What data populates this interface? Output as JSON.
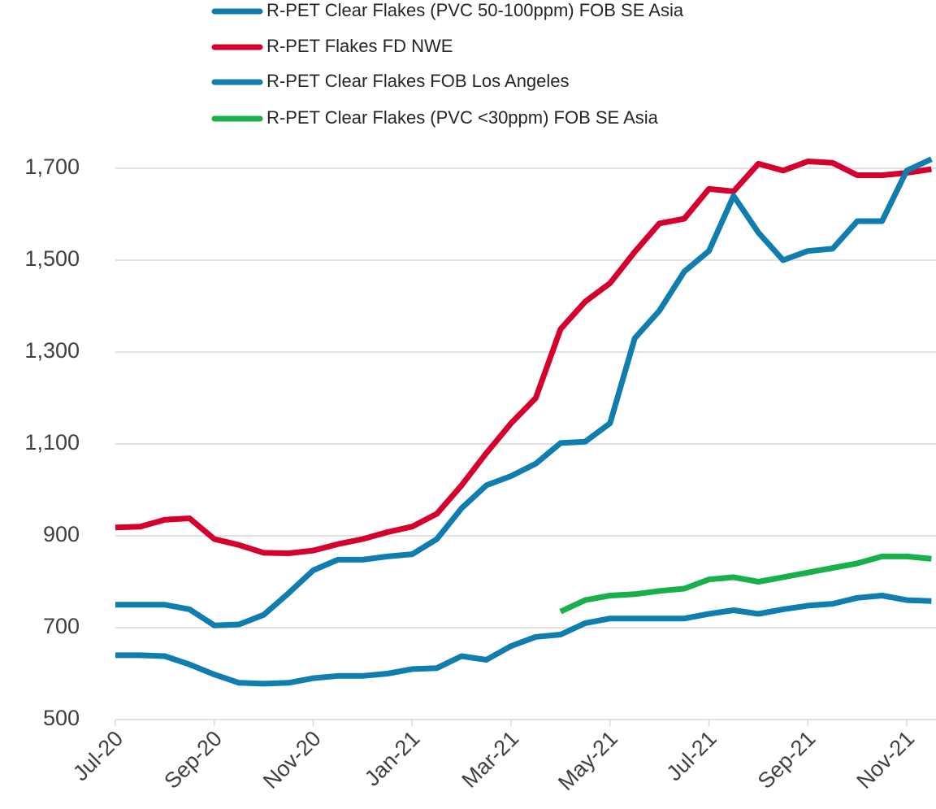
{
  "chart_data": {
    "type": "line",
    "categories": [
      "Jul-20",
      null,
      null,
      null,
      "Sep-20",
      null,
      null,
      null,
      "Nov-20",
      null,
      null,
      null,
      "Jan-21",
      null,
      null,
      null,
      "Mar-21",
      null,
      null,
      null,
      "May-21",
      null,
      null,
      null,
      "Jul-21",
      null,
      null,
      null,
      "Sep-21",
      null,
      null,
      null,
      "Nov-21",
      null
    ],
    "series": [
      {
        "name": "R-PET Clear Flakes (PVC 50-100ppm) FOB SE Asia",
        "color": "#0f7dae",
        "values": [
          640,
          640,
          638,
          620,
          598,
          580,
          578,
          580,
          590,
          595,
          595,
          600,
          610,
          612,
          638,
          630,
          660,
          680,
          685,
          710,
          720,
          720,
          720,
          720,
          730,
          738,
          730,
          740,
          748,
          752,
          765,
          770,
          760,
          758
        ]
      },
      {
        "name": "R-PET Flakes FD NWE",
        "color": "#d6002e",
        "values": [
          918,
          920,
          935,
          938,
          893,
          880,
          863,
          862,
          868,
          882,
          893,
          908,
          920,
          948,
          1010,
          1080,
          1145,
          1200,
          1350,
          1410,
          1450,
          1518,
          1580,
          1590,
          1655,
          1650,
          1710,
          1695,
          1715,
          1712,
          1685,
          1685,
          1690,
          1698
        ]
      },
      {
        "name": "R-PET Clear Flakes FOB Los Angeles",
        "color": "#0f7dae",
        "values": [
          750,
          750,
          750,
          740,
          705,
          707,
          728,
          775,
          825,
          848,
          848,
          855,
          860,
          893,
          960,
          1010,
          1030,
          1057,
          1102,
          1105,
          1145,
          1330,
          1390,
          1475,
          1520,
          1640,
          1560,
          1500,
          1520,
          1525,
          1585,
          1585,
          1695,
          1720
        ]
      },
      {
        "name": "R-PET Clear Flakes (PVC <30ppm) FOB SE Asia",
        "color": "#18b04a",
        "values": [
          null,
          null,
          null,
          null,
          null,
          null,
          null,
          null,
          null,
          null,
          null,
          null,
          null,
          null,
          null,
          null,
          null,
          null,
          735,
          760,
          770,
          773,
          780,
          785,
          805,
          810,
          800,
          810,
          820,
          830,
          840,
          855,
          855,
          850
        ]
      }
    ],
    "ylim": [
      500,
      1700
    ],
    "yticks": [
      500,
      700,
      900,
      {
        "value": 1100,
        "label": "1,100"
      },
      {
        "value": 1300,
        "label": "1,300"
      },
      {
        "value": 1500,
        "label": "1,500"
      },
      {
        "value": 1700,
        "label": "1,700"
      }
    ],
    "grid": true
  }
}
